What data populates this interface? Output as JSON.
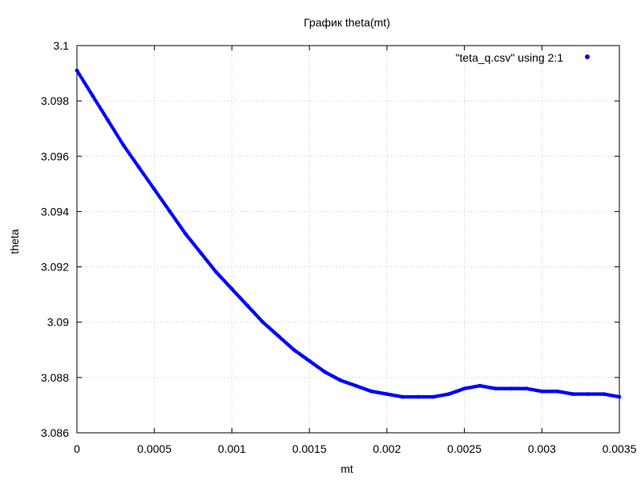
{
  "chart_data": {
    "type": "scatter",
    "title": "График theta(mt)",
    "xlabel": "mt",
    "ylabel": "theta",
    "xlim": [
      0,
      0.0035
    ],
    "ylim": [
      3.086,
      3.1
    ],
    "x_ticks": [
      0,
      0.0005,
      0.001,
      0.0015,
      0.002,
      0.0025,
      0.003,
      0.0035
    ],
    "x_tick_labels": [
      "0",
      "0.0005",
      "0.001",
      "0.0015",
      "0.002",
      "0.0025",
      "0.003",
      "0.0035"
    ],
    "y_ticks": [
      3.086,
      3.088,
      3.09,
      3.092,
      3.094,
      3.096,
      3.098,
      3.1
    ],
    "y_tick_labels": [
      "3.086",
      "3.088",
      "3.09",
      "3.092",
      "3.094",
      "3.096",
      "3.098",
      "3.1"
    ],
    "grid": true,
    "legend_position": "top-right",
    "series": [
      {
        "name": "\"teta_q.csv\" using 2:1",
        "color": "#0000ff",
        "marker": "dot",
        "points": [
          [
            0.0,
            3.0991
          ],
          [
            0.0001,
            3.0982
          ],
          [
            0.0002,
            3.0973
          ],
          [
            0.0003,
            3.0964
          ],
          [
            0.0004,
            3.0956
          ],
          [
            0.0005,
            3.0948
          ],
          [
            0.0006,
            3.094
          ],
          [
            0.0007,
            3.0932
          ],
          [
            0.0008,
            3.0925
          ],
          [
            0.0009,
            3.0918
          ],
          [
            0.001,
            3.0912
          ],
          [
            0.0011,
            3.0906
          ],
          [
            0.0012,
            3.09
          ],
          [
            0.0013,
            3.0895
          ],
          [
            0.0014,
            3.089
          ],
          [
            0.0015,
            3.0886
          ],
          [
            0.0016,
            3.0882
          ],
          [
            0.0017,
            3.0879
          ],
          [
            0.0018,
            3.0877
          ],
          [
            0.0019,
            3.0875
          ],
          [
            0.002,
            3.0874
          ],
          [
            0.0021,
            3.0873
          ],
          [
            0.0022,
            3.0873
          ],
          [
            0.0023,
            3.0873
          ],
          [
            0.0024,
            3.0874
          ],
          [
            0.0025,
            3.0876
          ],
          [
            0.0026,
            3.0877
          ],
          [
            0.0027,
            3.0876
          ],
          [
            0.0028,
            3.0876
          ],
          [
            0.0029,
            3.0876
          ],
          [
            0.003,
            3.0875
          ],
          [
            0.0031,
            3.0875
          ],
          [
            0.0032,
            3.0874
          ],
          [
            0.0033,
            3.0874
          ],
          [
            0.0034,
            3.0874
          ],
          [
            0.0035,
            3.0873
          ]
        ]
      }
    ]
  }
}
